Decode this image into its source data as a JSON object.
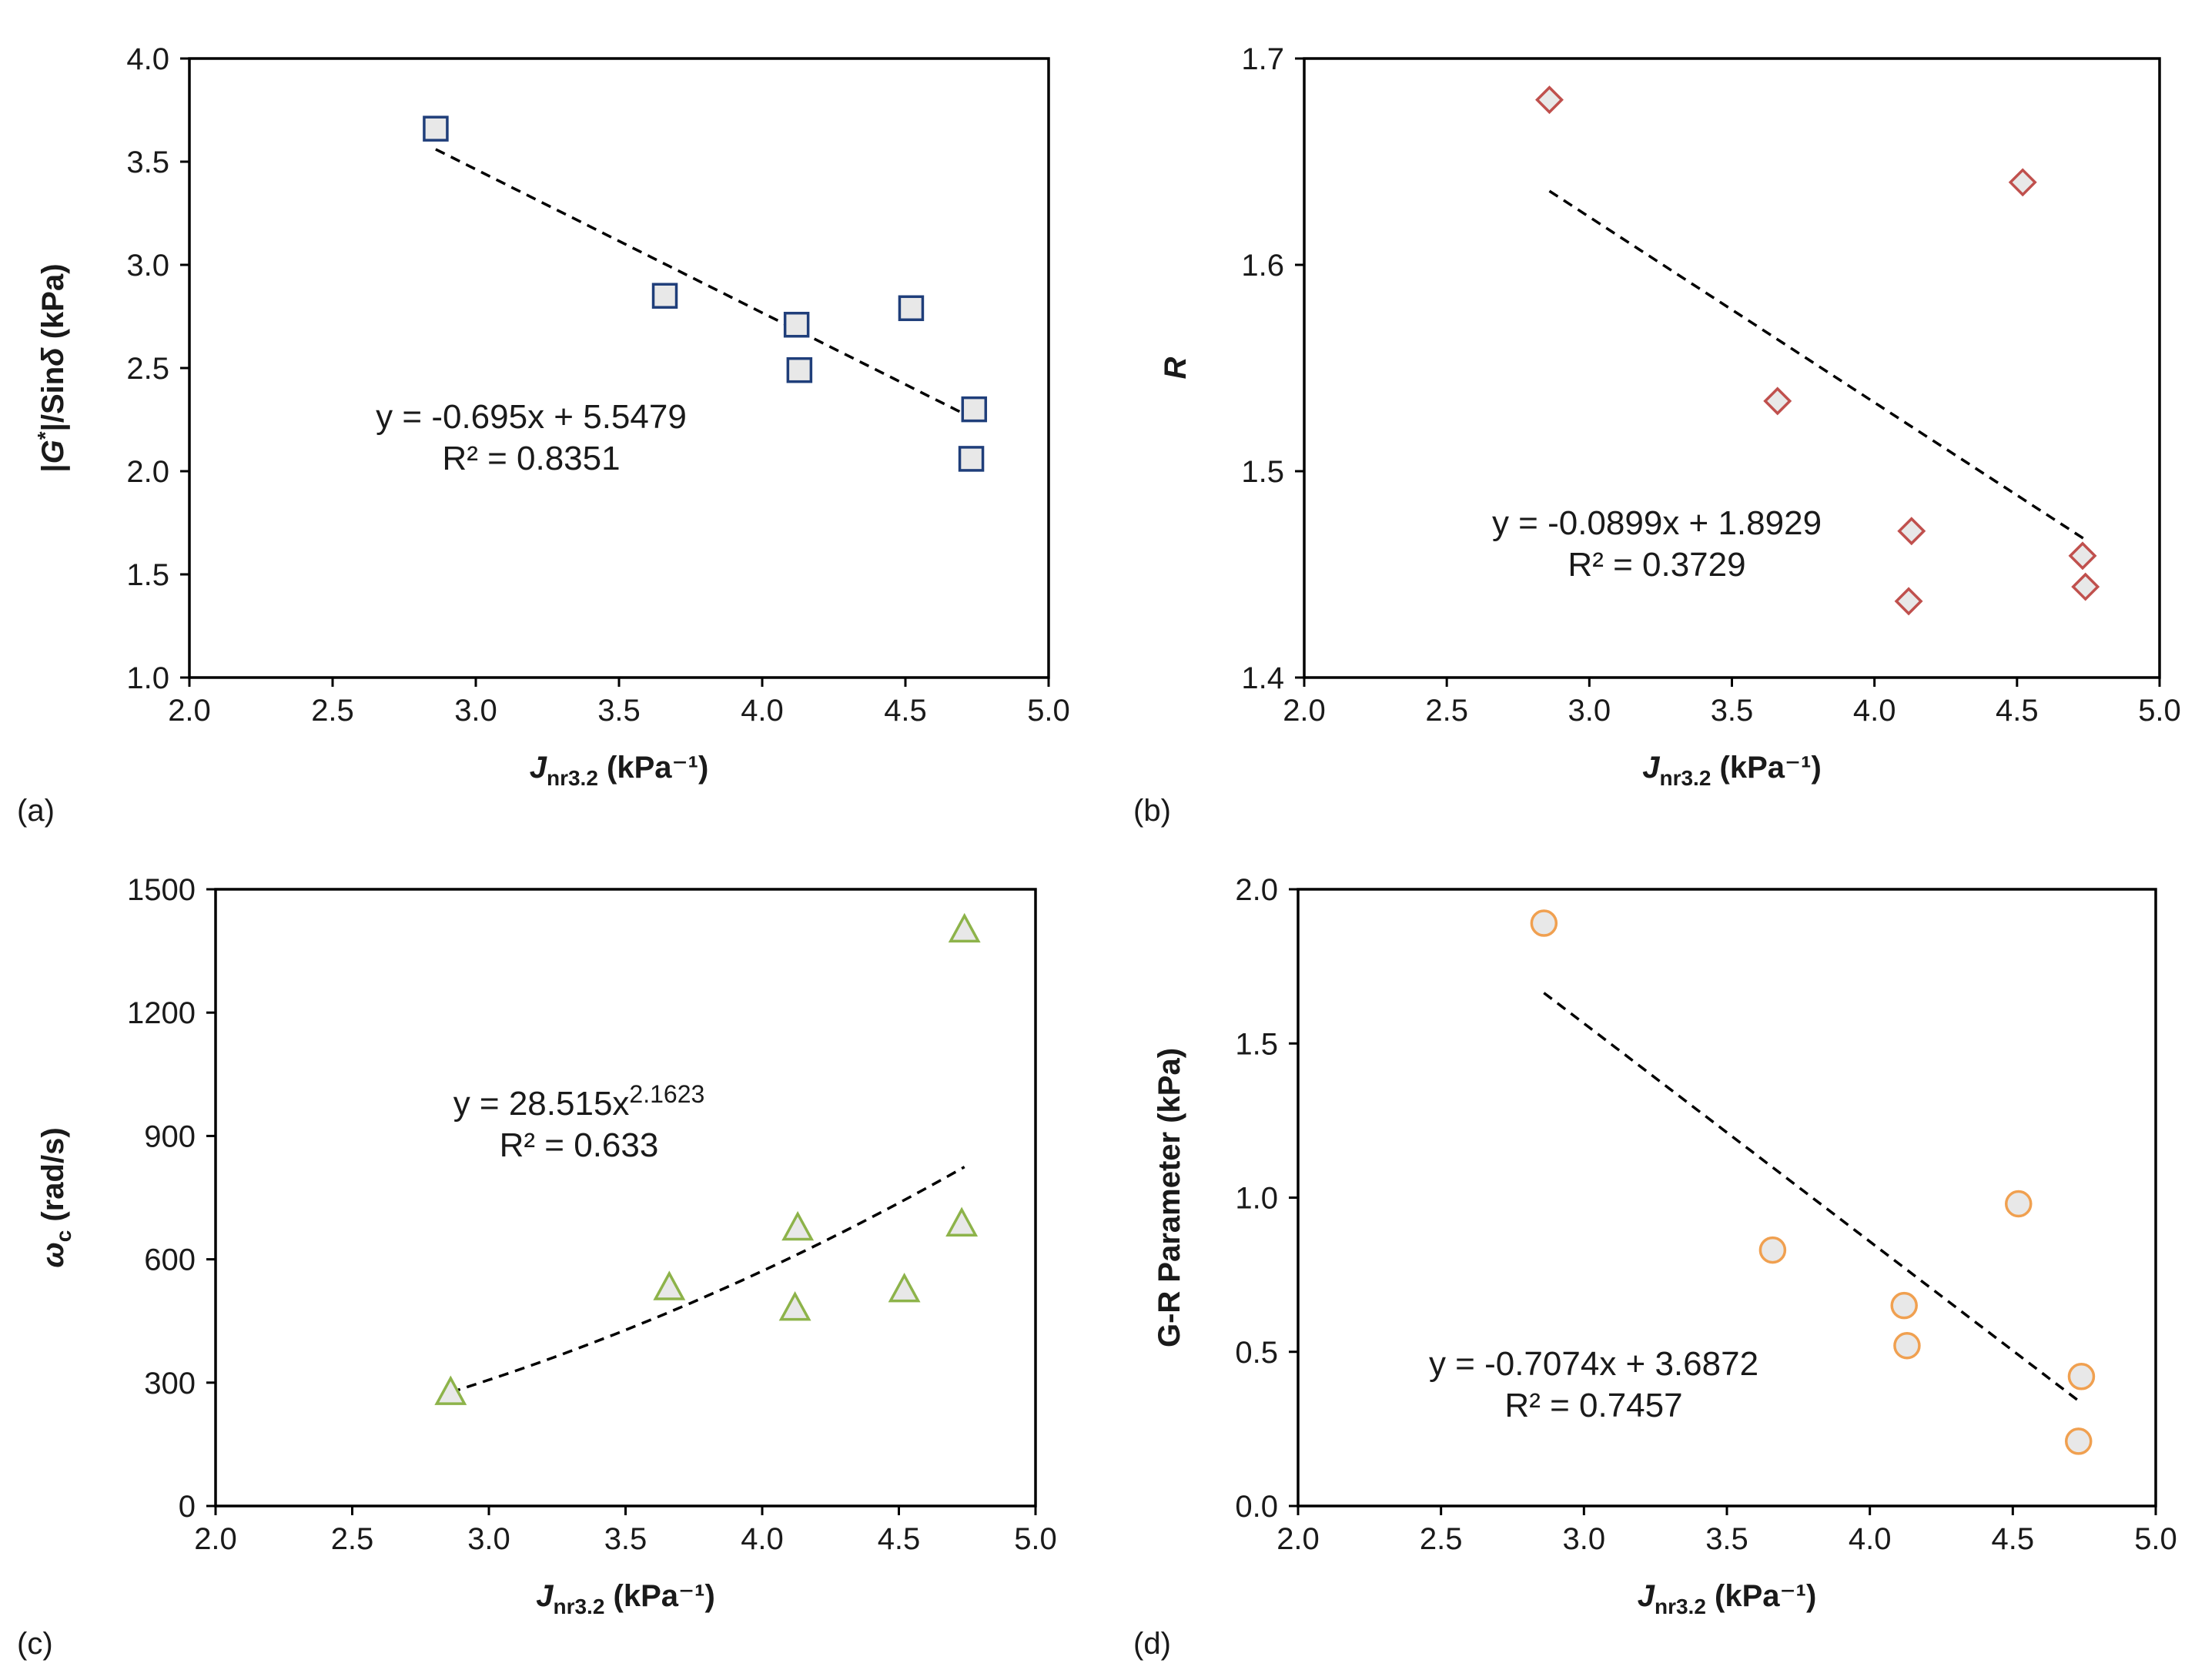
{
  "chart_data": [
    {
      "type": "scatter",
      "panel_label": "(a)",
      "xlabel": {
        "main": "J",
        "sub": "nr3.2",
        "unit": " (kPa⁻¹)"
      },
      "ylabel": {
        "prefix": "|",
        "italic": "G",
        "sup": "*",
        "suffix": "|/Sin",
        "italic2": "δ",
        "unit": " (kPa)"
      },
      "xlim": [
        2.0,
        5.0
      ],
      "ylim": [
        1.0,
        4.0
      ],
      "xticks": [
        "2.0",
        "2.5",
        "3.0",
        "3.5",
        "4.0",
        "4.5",
        "5.0"
      ],
      "yticks": [
        "1.0",
        "1.5",
        "2.0",
        "2.5",
        "3.0",
        "3.5",
        "4.0"
      ],
      "marker": "square",
      "marker_stroke": "#1f3e7a",
      "marker_fill": "#e8e8e8",
      "x": [
        2.86,
        3.66,
        4.12,
        4.13,
        4.52,
        4.73,
        4.74
      ],
      "y": [
        3.66,
        2.85,
        2.71,
        2.49,
        2.79,
        2.06,
        2.3
      ],
      "trendline": {
        "kind": "linear",
        "slope": -0.695,
        "intercept": 5.5479,
        "x_range": [
          2.86,
          4.74
        ]
      },
      "equation": "y = -0.695x + 5.5479",
      "r2": "R² = 0.8351"
    },
    {
      "type": "scatter",
      "panel_label": "(b)",
      "xlabel": {
        "main": "J",
        "sub": "nr3.2",
        "unit": " (kPa⁻¹)"
      },
      "ylabel": {
        "italic": "R"
      },
      "xlim": [
        2.0,
        5.0
      ],
      "ylim": [
        1.4,
        1.7
      ],
      "xticks": [
        "2.0",
        "2.5",
        "3.0",
        "3.5",
        "4.0",
        "4.5",
        "5.0"
      ],
      "yticks": [
        "1.4",
        "1.5",
        "1.6",
        "1.7"
      ],
      "marker": "diamond",
      "marker_stroke": "#c0504d",
      "marker_fill": "#e8e8e8",
      "x": [
        2.86,
        3.66,
        4.12,
        4.13,
        4.52,
        4.73,
        4.74
      ],
      "y": [
        1.68,
        1.534,
        1.437,
        1.471,
        1.64,
        1.459,
        1.444
      ],
      "trendline": {
        "kind": "linear",
        "slope": -0.0899,
        "intercept": 1.8929,
        "x_range": [
          2.86,
          4.74
        ]
      },
      "equation": "y = -0.0899x + 1.8929",
      "r2": "R² = 0.3729"
    },
    {
      "type": "scatter",
      "panel_label": "(c)",
      "xlabel": {
        "main": "J",
        "sub": "nr3.2",
        "unit": " (kPa⁻¹)"
      },
      "ylabel": {
        "italic": "ω",
        "sub": "c",
        "unit": " (rad/s)"
      },
      "xlim": [
        2.0,
        5.0
      ],
      "ylim": [
        0,
        1500
      ],
      "xticks": [
        "2.0",
        "2.5",
        "3.0",
        "3.5",
        "4.0",
        "4.5",
        "5.0"
      ],
      "yticks": [
        "0",
        "300",
        "600",
        "900",
        "1200",
        "1500"
      ],
      "marker": "triangle",
      "marker_stroke": "#8db34a",
      "marker_fill": "#e8e8e8",
      "x": [
        2.86,
        3.66,
        4.12,
        4.13,
        4.52,
        4.73,
        4.74
      ],
      "y": [
        275,
        530,
        480,
        675,
        525,
        685,
        1400
      ],
      "trendline": {
        "kind": "power",
        "coef": 28.515,
        "exp": 2.1623,
        "x_range": [
          2.86,
          4.74
        ]
      },
      "equation": "y = 28.515x",
      "equation_sup": "2.1623",
      "r2": "R² = 0.633"
    },
    {
      "type": "scatter",
      "panel_label": "(d)",
      "xlabel": {
        "main": "J",
        "sub": "nr3.2",
        "unit": " (kPa⁻¹)"
      },
      "ylabel": {
        "prefix": "G-R Parameter (kPa)"
      },
      "xlim": [
        2.0,
        5.0
      ],
      "ylim": [
        0.0,
        2.0
      ],
      "xticks": [
        "2.0",
        "2.5",
        "3.0",
        "3.5",
        "4.0",
        "4.5",
        "5.0"
      ],
      "yticks": [
        "0.0",
        "0.5",
        "1.0",
        "1.5",
        "2.0"
      ],
      "marker": "circle",
      "marker_stroke": "#f0a050",
      "marker_fill": "#e8e8e8",
      "x": [
        2.86,
        3.66,
        4.12,
        4.13,
        4.52,
        4.73,
        4.74
      ],
      "y": [
        1.89,
        0.83,
        0.65,
        0.52,
        0.98,
        0.21,
        0.42
      ],
      "trendline": {
        "kind": "linear",
        "slope": -0.7074,
        "intercept": 3.6872,
        "x_range": [
          2.86,
          4.74
        ]
      },
      "equation": "y = -0.7074x + 3.6872",
      "r2": "R² = 0.7457"
    }
  ]
}
